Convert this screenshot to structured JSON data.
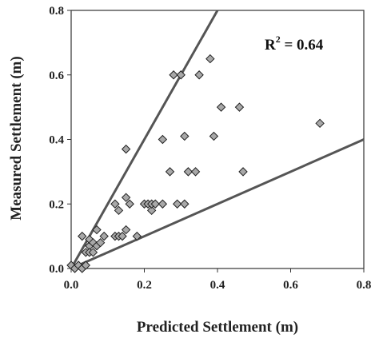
{
  "chart_data": {
    "type": "scatter",
    "title": "",
    "xlabel": "Predicted Settlement (m)",
    "ylabel": "Measured Settlement (m)",
    "xlim": [
      0,
      0.8
    ],
    "ylim": [
      0,
      0.8
    ],
    "xticks": [
      "0.0",
      "0.2",
      "0.4",
      "0.6",
      "0.8"
    ],
    "yticks": [
      "0.0",
      "0.2",
      "0.4",
      "0.6",
      "0.8"
    ],
    "annotation": {
      "base": "R",
      "sup": "2",
      "rest": " = 0.64"
    },
    "reference_lines": [
      {
        "slope": 2.0,
        "intercept": 0
      },
      {
        "slope": 0.5,
        "intercept": 0
      }
    ],
    "grid": false,
    "marker_color": "#a8a8a8",
    "line_color": "#555555",
    "points": [
      [
        0.0,
        0.01
      ],
      [
        0.01,
        0.0
      ],
      [
        0.02,
        0.01
      ],
      [
        0.03,
        0.0
      ],
      [
        0.03,
        0.1
      ],
      [
        0.04,
        0.05
      ],
      [
        0.04,
        0.01
      ],
      [
        0.05,
        0.07
      ],
      [
        0.05,
        0.05
      ],
      [
        0.05,
        0.09
      ],
      [
        0.06,
        0.05
      ],
      [
        0.06,
        0.08
      ],
      [
        0.07,
        0.07
      ],
      [
        0.07,
        0.12
      ],
      [
        0.08,
        0.08
      ],
      [
        0.09,
        0.1
      ],
      [
        0.12,
        0.1
      ],
      [
        0.12,
        0.2
      ],
      [
        0.13,
        0.1
      ],
      [
        0.13,
        0.18
      ],
      [
        0.14,
        0.1
      ],
      [
        0.15,
        0.37
      ],
      [
        0.15,
        0.22
      ],
      [
        0.15,
        0.12
      ],
      [
        0.16,
        0.2
      ],
      [
        0.18,
        0.1
      ],
      [
        0.2,
        0.2
      ],
      [
        0.21,
        0.2
      ],
      [
        0.22,
        0.18
      ],
      [
        0.22,
        0.2
      ],
      [
        0.23,
        0.2
      ],
      [
        0.25,
        0.4
      ],
      [
        0.25,
        0.2
      ],
      [
        0.27,
        0.3
      ],
      [
        0.28,
        0.6
      ],
      [
        0.29,
        0.2
      ],
      [
        0.3,
        0.6
      ],
      [
        0.31,
        0.2
      ],
      [
        0.31,
        0.41
      ],
      [
        0.32,
        0.3
      ],
      [
        0.34,
        0.3
      ],
      [
        0.35,
        0.6
      ],
      [
        0.38,
        0.65
      ],
      [
        0.39,
        0.41
      ],
      [
        0.41,
        0.5
      ],
      [
        0.46,
        0.5
      ],
      [
        0.47,
        0.3
      ],
      [
        0.68,
        0.45
      ]
    ]
  }
}
